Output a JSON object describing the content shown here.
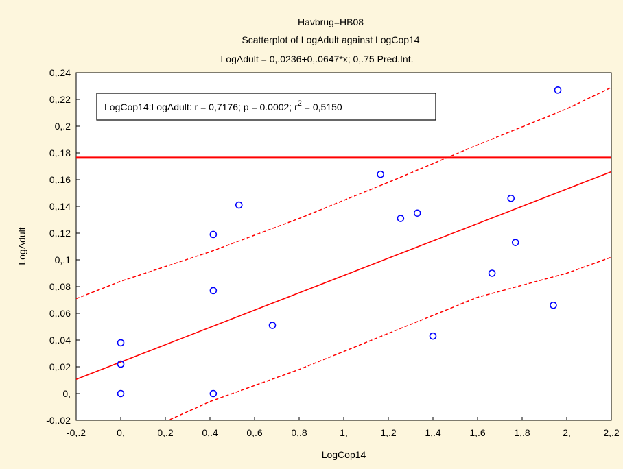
{
  "chart_data": {
    "type": "scatter",
    "title_lines": [
      "Havbrug=HB08",
      "Scatterplot of LogAdult against LogCop14",
      "LogAdult = 0,.0236+0,.0647*x; 0,.75 Pred.Int."
    ],
    "xlabel": "LogCop14",
    "ylabel": "LogAdult",
    "xlim": [
      -0.2,
      2.2
    ],
    "ylim": [
      -0.02,
      0.24
    ],
    "x_ticks": [
      -0.2,
      0,
      0.2,
      0.4,
      0.6,
      0.8,
      1.0,
      1.2,
      1.4,
      1.6,
      1.8,
      2.0,
      2.2
    ],
    "x_tick_labels": [
      "-0,.2",
      "0,",
      "0,.2",
      "0,.4",
      "0,.6",
      "0,.8",
      "1,",
      "1,.2",
      "1,.4",
      "1,.6",
      "1,.8",
      "2,",
      "2,.2"
    ],
    "y_ticks": [
      -0.02,
      0,
      0.02,
      0.04,
      0.06,
      0.08,
      0.1,
      0.12,
      0.14,
      0.16,
      0.18,
      0.2,
      0.22,
      0.24
    ],
    "y_tick_labels": [
      "-0,.02",
      "0,",
      "0,.02",
      "0,.04",
      "0,.06",
      "0,.08",
      "0,.1",
      "0,.12",
      "0,.14",
      "0,.16",
      "0,.18",
      "0,.2",
      "0,.22",
      "0,.24"
    ],
    "grid": false,
    "legend_placement": "top-left",
    "points": [
      {
        "x": 0.0,
        "y": 0.038
      },
      {
        "x": 0.0,
        "y": 0.022
      },
      {
        "x": 0.0,
        "y": 0.0
      },
      {
        "x": 0.415,
        "y": 0.119
      },
      {
        "x": 0.415,
        "y": 0.077
      },
      {
        "x": 0.415,
        "y": 0.0
      },
      {
        "x": 0.53,
        "y": 0.141
      },
      {
        "x": 0.68,
        "y": 0.051
      },
      {
        "x": 1.165,
        "y": 0.164
      },
      {
        "x": 1.255,
        "y": 0.131
      },
      {
        "x": 1.33,
        "y": 0.135
      },
      {
        "x": 1.4,
        "y": 0.043
      },
      {
        "x": 1.665,
        "y": 0.09
      },
      {
        "x": 1.75,
        "y": 0.146
      },
      {
        "x": 1.77,
        "y": 0.113
      },
      {
        "x": 1.94,
        "y": 0.066
      },
      {
        "x": 1.96,
        "y": 0.227
      }
    ],
    "regression": {
      "intercept": 0.0236,
      "slope": 0.0647
    },
    "prediction_interval": {
      "x": [
        -0.2,
        0.0,
        0.4,
        0.8,
        1.2,
        1.6,
        2.0,
        2.2
      ],
      "upper": [
        0.071,
        0.084,
        0.106,
        0.131,
        0.158,
        0.186,
        0.213,
        0.229
      ],
      "lower": [
        -0.04,
        -0.036,
        -0.006,
        0.018,
        0.045,
        0.072,
        0.09,
        0.102
      ]
    },
    "reference_line_y": 0.1765,
    "legend_text_main": "LogCop14:LogAdult:   r = 0,7176; p = 0.0002; r",
    "legend_text_sup": "2",
    "legend_text_tail": " = 0,5150",
    "colors": {
      "background": "#fdf6dd",
      "plot_area": "#ffffff",
      "points": "#0000ff",
      "fit_line": "#ff0000",
      "reference_line": "#ff0000",
      "axis": "#000000"
    }
  }
}
